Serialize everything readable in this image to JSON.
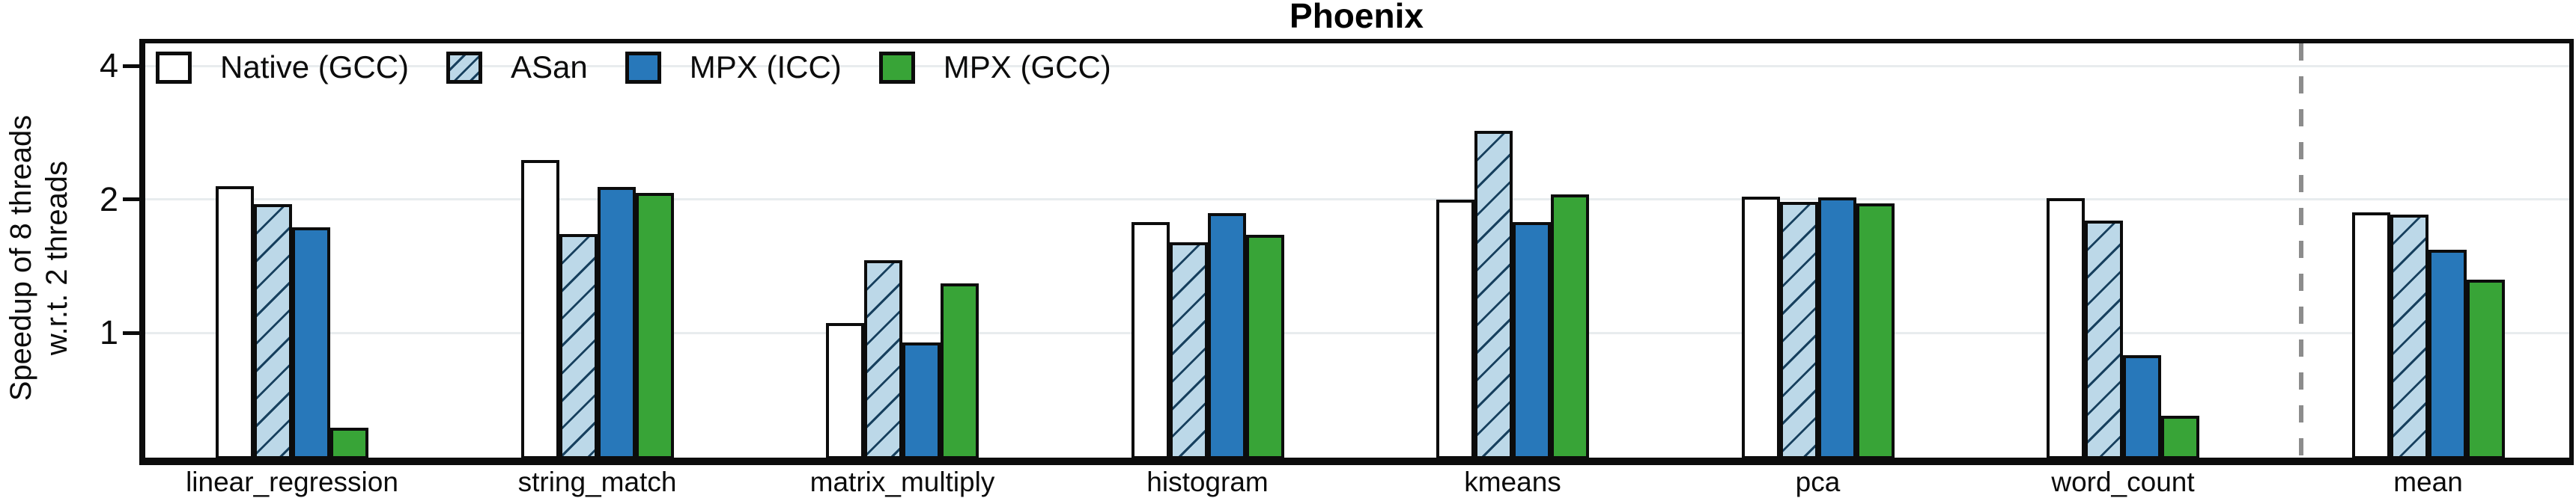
{
  "title": "Phoenix",
  "chart_data": {
    "type": "bar",
    "title": "Phoenix",
    "ylabel_lines": [
      "Speedup of 8 threads",
      "w.r.t. 2 threads"
    ],
    "xlabel": "",
    "yscale": "log2",
    "ylim": [
      0.5,
      4.6
    ],
    "yticks": [
      4,
      2,
      1
    ],
    "gridline_values": [
      4,
      2,
      1
    ],
    "grid_on": true,
    "legend_position": "top-left-inside",
    "categories": [
      "linear_regression",
      "string_match",
      "matrix_multiply",
      "histogram",
      "kmeans",
      "pca",
      "word_count",
      "mean"
    ],
    "series": [
      {
        "name": "Native (GCC)",
        "key": "native",
        "values": [
          2.14,
          2.45,
          1.05,
          1.78,
          2.0,
          2.03,
          2.01,
          1.87
        ]
      },
      {
        "name": "ASan",
        "key": "asan",
        "values": [
          1.95,
          1.67,
          1.46,
          1.6,
          2.85,
          1.97,
          1.79,
          1.85
        ]
      },
      {
        "name": "MPX (ICC)",
        "key": "mpx_icc",
        "values": [
          1.73,
          2.13,
          0.95,
          1.86,
          1.78,
          2.02,
          0.89,
          1.54
        ]
      },
      {
        "name": "MPX (GCC)",
        "key": "mpx_gcc",
        "values": [
          0.61,
          2.07,
          1.29,
          1.66,
          2.05,
          1.96,
          0.65,
          1.32
        ]
      }
    ],
    "separator_before_category": "mean",
    "annotations": []
  },
  "colors": {
    "bar_native_fill": "#ffffff",
    "bar_asan_fill": "#bcd8e8",
    "bar_asan_hatch_line": "#17405e",
    "bar_mpx_icc_fill": "#2878ba",
    "bar_mpx_gcc_fill": "#38a437",
    "outline": "#0c0c0c",
    "gridline": "#e8ecee",
    "separator_dash": "#8c8c8c",
    "background": "#ffffff"
  }
}
